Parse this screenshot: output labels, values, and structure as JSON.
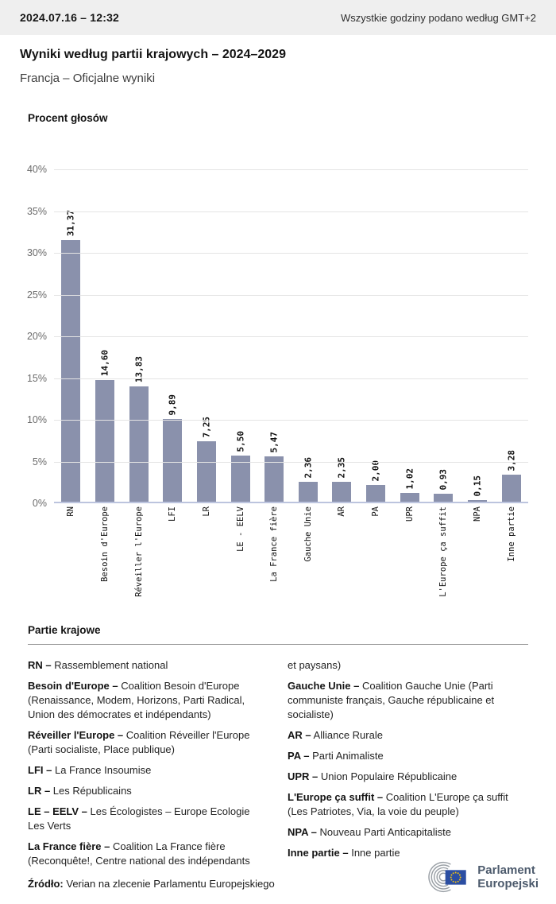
{
  "header": {
    "datetime": "2024.07.16 – 12:32",
    "timezone_note": "Wszystkie godziny podano według GMT+2"
  },
  "title": "Wyniki według partii krajowych – 2024–2029",
  "subtitle": "Francja – Oficjalne wyniki",
  "chart_data": {
    "type": "bar",
    "title": "Procent głosów",
    "categories": [
      "RN",
      "Besoin d'Europe",
      "Réveiller l'Europe",
      "LFI",
      "LR",
      "LE - EELV",
      "La France fière",
      "Gauche Unie",
      "AR",
      "PA",
      "UPR",
      "L'Europe ça suffit",
      "NPA",
      "Inne partie"
    ],
    "values": [
      31.37,
      14.6,
      13.83,
      9.89,
      7.25,
      5.5,
      5.47,
      2.36,
      2.35,
      2.0,
      1.02,
      0.93,
      0.15,
      3.28
    ],
    "value_labels": [
      "31,37",
      "14,60",
      "13,83",
      "9,89",
      "7,25",
      "5,50",
      "5,47",
      "2,36",
      "2,35",
      "2,00",
      "1,02",
      "0,93",
      "0,15",
      "3,28"
    ],
    "ylabel": "Procent głosów",
    "ylim": [
      0,
      40
    ],
    "ytick_step": 5,
    "yticks": [
      "40%",
      "35%",
      "30%",
      "25%",
      "20%",
      "15%",
      "10%",
      "5%",
      "0%"
    ],
    "grid": true,
    "legend_position": "none",
    "bar_color": "#8a91ac"
  },
  "legend": {
    "heading": "Partie krajowe",
    "left_column": [
      {
        "term": "RN –",
        "definition": "Rassemblement national"
      },
      {
        "term": "Besoin d'Europe –",
        "definition": "Coalition Besoin d'Europe (Renaissance, Modem, Horizons, Parti Radical, Union des démocrates et indépendants)"
      },
      {
        "term": "Réveiller l'Europe –",
        "definition": "Coalition Réveiller l'Europe (Parti socialiste, Place publique)"
      },
      {
        "term": "LFI –",
        "definition": "La France Insoumise"
      },
      {
        "term": "LR –",
        "definition": "Les Républicains"
      },
      {
        "term": "LE – EELV –",
        "definition": "Les Écologistes – Europe Ecologie Les Verts"
      },
      {
        "term": "La France fière –",
        "definition": "Coalition La France fière (Reconquête!, Centre national des indépendants"
      }
    ],
    "right_column": [
      {
        "term": "",
        "definition": "et paysans)"
      },
      {
        "term": "Gauche Unie –",
        "definition": "Coalition Gauche Unie (Parti communiste français, Gauche républicaine et socialiste)"
      },
      {
        "term": "AR –",
        "definition": "Alliance Rurale"
      },
      {
        "term": "PA –",
        "definition": "Parti Animaliste"
      },
      {
        "term": "UPR –",
        "definition": "Union Populaire Républicaine"
      },
      {
        "term": "L'Europe ça suffit –",
        "definition": "Coalition L'Europe ça suffit (Les Patriotes, Via, la voie du peuple)"
      },
      {
        "term": "NPA –",
        "definition": "Nouveau Parti Anticapitaliste"
      },
      {
        "term": "Inne partie –",
        "definition": "Inne partie"
      }
    ]
  },
  "footer": {
    "source_label": "Źródło:",
    "source_text": " Verian na zlecenie Parlamentu Europejskiego",
    "logo_line1": "Parlament",
    "logo_line2": "Europejski"
  },
  "colors": {
    "bar": "#8a91ac",
    "axis": "#bcc4de",
    "gridline": "#e4e4e4",
    "header_bg": "#efefef",
    "logo_text": "#4c5a6c",
    "flag_blue": "#2b4ea2",
    "star_gold": "#f6c40e"
  }
}
